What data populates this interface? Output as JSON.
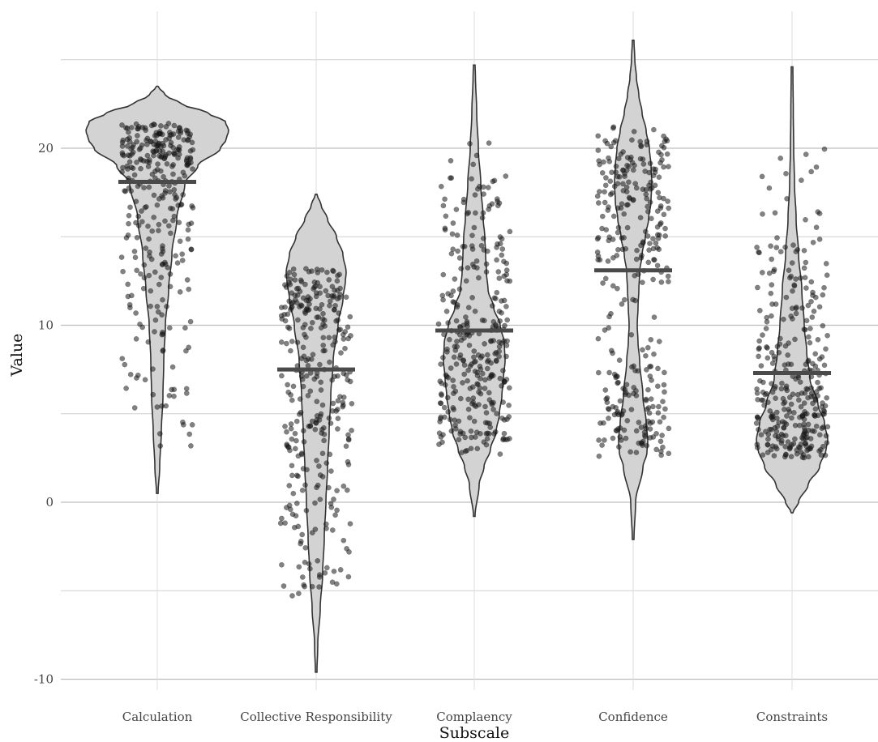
{
  "chart_data": {
    "type": "violin",
    "xlabel": "Subscale",
    "ylabel": "Value",
    "ylim": [
      -10.8,
      27.2
    ],
    "y_ticks": [
      -10,
      0,
      10,
      20
    ],
    "y_tick_labels": [
      "-10",
      "0",
      "10",
      "20"
    ],
    "y_minor_gridlines": [
      -5,
      5,
      15,
      25
    ],
    "grid": true,
    "legend": "none",
    "categories": [
      "Calculation",
      "Collective Responsibility",
      "Complaency",
      "Confidence",
      "Constraints"
    ],
    "series": [
      {
        "category": "Calculation",
        "mean": 18.1,
        "y_min": 0.5,
        "y_max": 23.5,
        "points_range": [
          2.8,
          21.4
        ],
        "density_profile": [
          [
            0.5,
            1
          ],
          [
            2,
            3
          ],
          [
            4,
            5
          ],
          [
            6,
            7
          ],
          [
            8,
            8
          ],
          [
            10,
            10
          ],
          [
            12,
            14
          ],
          [
            14,
            18
          ],
          [
            16,
            24
          ],
          [
            18,
            34
          ],
          [
            19,
            50
          ],
          [
            20,
            78
          ],
          [
            20.5,
            85
          ],
          [
            21,
            88
          ],
          [
            21.5,
            84
          ],
          [
            22,
            62
          ],
          [
            22.5,
            30
          ],
          [
            23,
            10
          ],
          [
            23.5,
            1
          ]
        ]
      },
      {
        "category": "Collective Responsibility",
        "mean": 7.5,
        "y_min": -9.6,
        "y_max": 17.4,
        "points_range": [
          -5.3,
          13.2
        ],
        "density_profile": [
          [
            -9.6,
            1
          ],
          [
            -8,
            2
          ],
          [
            -6,
            5
          ],
          [
            -4,
            8
          ],
          [
            -2,
            10
          ],
          [
            0,
            12
          ],
          [
            2,
            14
          ],
          [
            4,
            16
          ],
          [
            6,
            18
          ],
          [
            8,
            21
          ],
          [
            10,
            27
          ],
          [
            11.5,
            33
          ],
          [
            12.5,
            36
          ],
          [
            13,
            37
          ],
          [
            14,
            33
          ],
          [
            15,
            25
          ],
          [
            16,
            14
          ],
          [
            16.8,
            6
          ],
          [
            17.4,
            1
          ]
        ]
      },
      {
        "category": "Complaency",
        "mean": 9.7,
        "y_min": -0.8,
        "y_max": 24.7,
        "points_range": [
          2.6,
          21.3
        ],
        "density_profile": [
          [
            -0.8,
            1
          ],
          [
            1,
            6
          ],
          [
            2,
            12
          ],
          [
            3,
            20
          ],
          [
            4,
            27
          ],
          [
            5,
            31
          ],
          [
            6,
            34
          ],
          [
            7,
            36
          ],
          [
            8,
            38
          ],
          [
            9,
            37
          ],
          [
            10,
            32
          ],
          [
            11,
            24
          ],
          [
            12,
            17
          ],
          [
            13,
            15
          ],
          [
            14,
            14
          ],
          [
            15,
            13
          ],
          [
            16,
            11
          ],
          [
            18,
            8
          ],
          [
            20,
            5
          ],
          [
            22,
            3
          ],
          [
            24,
            1.5
          ],
          [
            24.7,
            1
          ]
        ]
      },
      {
        "category": "Confidence",
        "mean": 13.1,
        "y_min": -2.1,
        "y_max": 26.1,
        "points_range": [
          2.6,
          21.4
        ],
        "density_profile": [
          [
            -2.1,
            1
          ],
          [
            0,
            3
          ],
          [
            2,
            12
          ],
          [
            2.8,
            17
          ],
          [
            3.5,
            18
          ],
          [
            4.5,
            16
          ],
          [
            6,
            12
          ],
          [
            8,
            8
          ],
          [
            9,
            6
          ],
          [
            10,
            5
          ],
          [
            11,
            6
          ],
          [
            12,
            7
          ],
          [
            13,
            8
          ],
          [
            14,
            11
          ],
          [
            15,
            15
          ],
          [
            16,
            19
          ],
          [
            17,
            22
          ],
          [
            18,
            23
          ],
          [
            19,
            22
          ],
          [
            20,
            20
          ],
          [
            21,
            16
          ],
          [
            22,
            11
          ],
          [
            23,
            7
          ],
          [
            24,
            4
          ],
          [
            25,
            2
          ],
          [
            26.1,
            1
          ]
        ]
      },
      {
        "category": "Constraints",
        "mean": 7.3,
        "y_min": -0.6,
        "y_max": 24.6,
        "points_range": [
          2.5,
          21.2
        ],
        "density_profile": [
          [
            -0.6,
            1
          ],
          [
            0,
            8
          ],
          [
            1,
            20
          ],
          [
            2,
            34
          ],
          [
            3,
            42
          ],
          [
            3.5,
            44
          ],
          [
            4.5,
            40
          ],
          [
            5.5,
            32
          ],
          [
            7,
            22
          ],
          [
            8.5,
            18
          ],
          [
            10,
            15
          ],
          [
            12,
            12
          ],
          [
            14,
            8
          ],
          [
            16,
            5
          ],
          [
            18,
            3
          ],
          [
            20,
            2
          ],
          [
            22,
            1.5
          ],
          [
            24.6,
            1
          ]
        ]
      }
    ]
  }
}
